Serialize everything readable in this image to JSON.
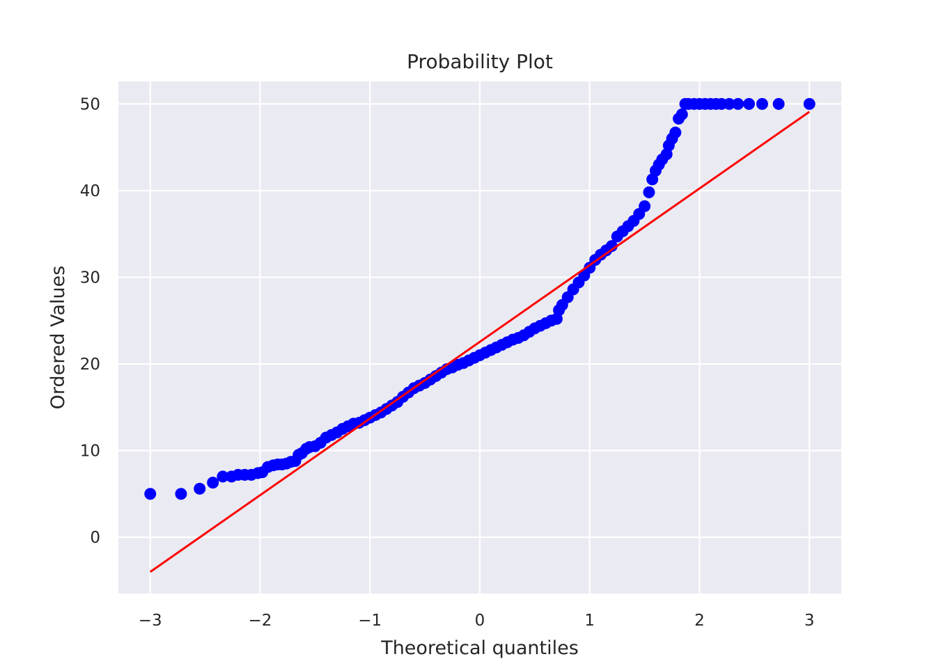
{
  "chart_data": {
    "type": "scatter",
    "title": "Probability Plot",
    "xlabel": "Theoretical quantiles",
    "ylabel": "Ordered Values",
    "xlim": [
      -3.29,
      3.29
    ],
    "ylim": [
      -6.5,
      52.6
    ],
    "x_ticks": [
      -3,
      -2,
      -1,
      0,
      1,
      2,
      3
    ],
    "x_tick_labels": [
      "−3",
      "−2",
      "−1",
      "0",
      "1",
      "2",
      "3"
    ],
    "y_ticks": [
      0,
      10,
      20,
      30,
      40,
      50
    ],
    "y_tick_labels": [
      "0",
      "10",
      "20",
      "30",
      "40",
      "50"
    ],
    "grid": true,
    "background": "#eaeaf2",
    "series": [
      {
        "kind": "points",
        "color": "#0000ff",
        "points": [
          [
            -3.0,
            5.0
          ],
          [
            -2.72,
            5.0
          ],
          [
            -2.55,
            5.6
          ],
          [
            -2.43,
            6.3
          ],
          [
            -2.34,
            7.0
          ],
          [
            -2.26,
            7.0
          ],
          [
            -2.2,
            7.2
          ],
          [
            -2.14,
            7.2
          ],
          [
            -2.08,
            7.2
          ],
          [
            -2.02,
            7.4
          ],
          [
            -1.98,
            7.5
          ],
          [
            -1.93,
            8.1
          ],
          [
            -1.88,
            8.3
          ],
          [
            -1.84,
            8.4
          ],
          [
            -1.8,
            8.4
          ],
          [
            -1.76,
            8.5
          ],
          [
            -1.72,
            8.7
          ],
          [
            -1.68,
            8.8
          ],
          [
            -1.65,
            9.5
          ],
          [
            -1.62,
            9.7
          ],
          [
            -1.58,
            10.2
          ],
          [
            -1.55,
            10.4
          ],
          [
            -1.5,
            10.5
          ],
          [
            -1.45,
            10.9
          ],
          [
            -1.4,
            11.5
          ],
          [
            -1.35,
            11.8
          ],
          [
            -1.3,
            12.1
          ],
          [
            -1.25,
            12.5
          ],
          [
            -1.2,
            12.8
          ],
          [
            -1.15,
            13.1
          ],
          [
            -1.1,
            13.2
          ],
          [
            -1.05,
            13.5
          ],
          [
            -1.0,
            13.8
          ],
          [
            -0.95,
            14.1
          ],
          [
            -0.9,
            14.4
          ],
          [
            -0.85,
            14.8
          ],
          [
            -0.8,
            15.2
          ],
          [
            -0.75,
            15.6
          ],
          [
            -0.7,
            16.2
          ],
          [
            -0.65,
            16.7
          ],
          [
            -0.6,
            17.2
          ],
          [
            -0.55,
            17.5
          ],
          [
            -0.5,
            17.8
          ],
          [
            -0.45,
            18.2
          ],
          [
            -0.4,
            18.6
          ],
          [
            -0.35,
            19.0
          ],
          [
            -0.3,
            19.4
          ],
          [
            -0.25,
            19.6
          ],
          [
            -0.2,
            19.9
          ],
          [
            -0.15,
            20.1
          ],
          [
            -0.1,
            20.4
          ],
          [
            -0.05,
            20.7
          ],
          [
            0.0,
            21.0
          ],
          [
            0.05,
            21.3
          ],
          [
            0.1,
            21.6
          ],
          [
            0.15,
            21.9
          ],
          [
            0.2,
            22.2
          ],
          [
            0.25,
            22.5
          ],
          [
            0.3,
            22.8
          ],
          [
            0.35,
            23.0
          ],
          [
            0.4,
            23.3
          ],
          [
            0.45,
            23.7
          ],
          [
            0.5,
            24.1
          ],
          [
            0.55,
            24.4
          ],
          [
            0.6,
            24.7
          ],
          [
            0.65,
            25.0
          ],
          [
            0.7,
            25.2
          ],
          [
            0.72,
            26.2
          ],
          [
            0.75,
            26.8
          ],
          [
            0.8,
            27.7
          ],
          [
            0.85,
            28.6
          ],
          [
            0.9,
            29.4
          ],
          [
            0.95,
            30.2
          ],
          [
            1.0,
            31.1
          ],
          [
            1.05,
            32.0
          ],
          [
            1.1,
            32.6
          ],
          [
            1.15,
            33.1
          ],
          [
            1.2,
            33.6
          ],
          [
            1.25,
            34.7
          ],
          [
            1.3,
            35.3
          ],
          [
            1.35,
            35.9
          ],
          [
            1.4,
            36.5
          ],
          [
            1.45,
            37.3
          ],
          [
            1.5,
            38.2
          ],
          [
            1.54,
            39.8
          ],
          [
            1.57,
            41.3
          ],
          [
            1.6,
            42.3
          ],
          [
            1.63,
            43.0
          ],
          [
            1.66,
            43.6
          ],
          [
            1.7,
            44.2
          ],
          [
            1.72,
            45.2
          ],
          [
            1.75,
            46.0
          ],
          [
            1.78,
            46.7
          ],
          [
            1.81,
            48.3
          ],
          [
            1.84,
            48.8
          ],
          [
            1.87,
            50.0
          ],
          [
            1.9,
            50.0
          ],
          [
            1.95,
            50.0
          ],
          [
            2.0,
            50.0
          ],
          [
            2.05,
            50.0
          ],
          [
            2.1,
            50.0
          ],
          [
            2.15,
            50.0
          ],
          [
            2.2,
            50.0
          ],
          [
            2.27,
            50.0
          ],
          [
            2.35,
            50.0
          ],
          [
            2.45,
            50.0
          ],
          [
            2.57,
            50.0
          ],
          [
            2.72,
            50.0
          ],
          [
            3.0,
            50.0
          ]
        ]
      },
      {
        "kind": "line",
        "color": "#ff0000",
        "x": [
          -3.0,
          3.0
        ],
        "y": [
          -4.0,
          49.1
        ]
      }
    ]
  }
}
